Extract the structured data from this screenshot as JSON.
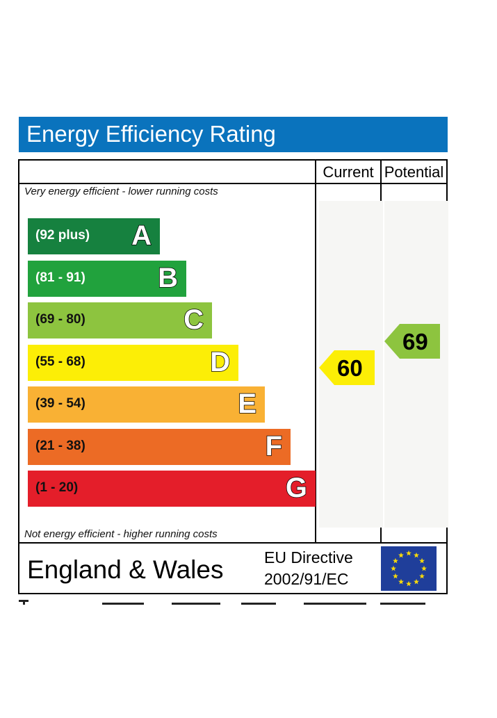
{
  "title": "Energy Efficiency Rating",
  "columns": {
    "current": "Current",
    "potential": "Potential"
  },
  "notes": {
    "top": "Very energy efficient - lower running costs",
    "bottom": "Not energy efficient - higher running costs"
  },
  "chart_data": {
    "type": "bar",
    "title": "Energy Efficiency Rating",
    "bands": [
      {
        "letter": "A",
        "range": "(92 plus)",
        "color": "#16813f",
        "text_color": "#ffffff"
      },
      {
        "letter": "B",
        "range": "(81 - 91)",
        "color": "#21a23d",
        "text_color": "#ffffff"
      },
      {
        "letter": "C",
        "range": "(69 - 80)",
        "color": "#8dc43f",
        "text_color": "#111111"
      },
      {
        "letter": "D",
        "range": "(55 - 68)",
        "color": "#fcee06",
        "text_color": "#111111"
      },
      {
        "letter": "E",
        "range": "(39 - 54)",
        "color": "#f9b134",
        "text_color": "#111111"
      },
      {
        "letter": "F",
        "range": "(21 - 38)",
        "color": "#ec6b25",
        "text_color": "#111111"
      },
      {
        "letter": "G",
        "range": "(1 - 20)",
        "color": "#e41e2a",
        "text_color": "#111111"
      }
    ],
    "current": {
      "value": 60,
      "band": "D",
      "color": "#fcee06"
    },
    "potential": {
      "value": 69,
      "band": "C",
      "color": "#8dc43f"
    }
  },
  "footer": {
    "country": "England & Wales",
    "directive_line1": "EU Directive",
    "directive_line2": "2002/91/EC"
  }
}
